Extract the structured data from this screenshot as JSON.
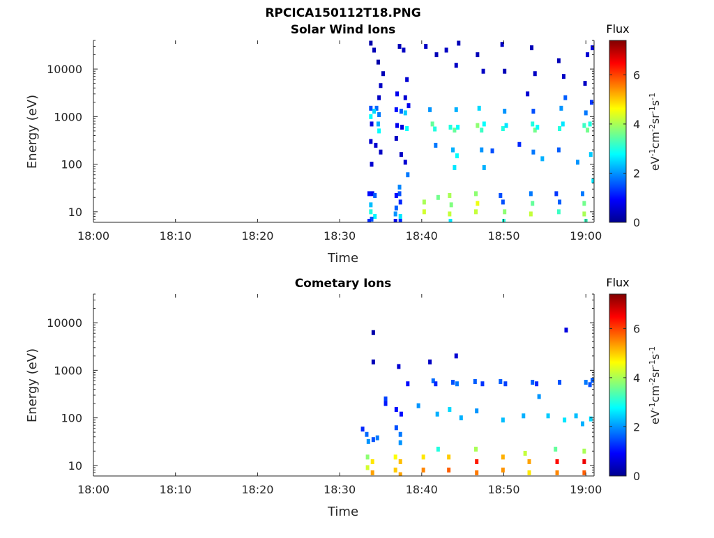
{
  "figure_title": "RPCICA150112T18.PNG",
  "chart_data": [
    {
      "type": "heatmap",
      "title": "Solar Wind Ions",
      "xlabel": "Time",
      "ylabel": "Energy (eV)",
      "x_ticks": [
        "18:00",
        "18:10",
        "18:20",
        "18:30",
        "18:40",
        "18:50",
        "19:00"
      ],
      "y_ticks": [
        "10",
        "100",
        "1000",
        "10000"
      ],
      "y_scale": "log",
      "xlim": [
        "18:00",
        "19:01"
      ],
      "ylim": [
        6,
        40000
      ],
      "colorbar": {
        "title": "Flux",
        "label": "eV-1cm-2sr-1s-1",
        "label_parts": [
          [
            "eV",
            ""
          ],
          [
            "-1",
            "sup"
          ],
          [
            "cm",
            ""
          ],
          [
            "-2",
            "sup"
          ],
          [
            "sr",
            ""
          ],
          [
            "-1",
            "sup"
          ],
          [
            "s",
            ""
          ],
          [
            "-1",
            "sup"
          ]
        ],
        "range": [
          0,
          7.4
        ],
        "ticks": [
          "0",
          "2",
          "4",
          "6"
        ],
        "colormap": "jet"
      },
      "cells": [
        {
          "t": 33.8,
          "e": 35000,
          "v": 0.3
        },
        {
          "t": 34.7,
          "e": 14000,
          "v": 0.3
        },
        {
          "t": 34.2,
          "e": 25000,
          "v": 0.4
        },
        {
          "t": 35.3,
          "e": 8000,
          "v": 0.4
        },
        {
          "t": 35.0,
          "e": 4500,
          "v": 0.5
        },
        {
          "t": 34.8,
          "e": 2500,
          "v": 0.5
        },
        {
          "t": 37.3,
          "e": 30000,
          "v": 0.4
        },
        {
          "t": 37.8,
          "e": 25000,
          "v": 0.5
        },
        {
          "t": 38.2,
          "e": 6000,
          "v": 0.6
        },
        {
          "t": 37.0,
          "e": 3000,
          "v": 0.8
        },
        {
          "t": 38.0,
          "e": 2500,
          "v": 0.6
        },
        {
          "t": 38.4,
          "e": 1700,
          "v": 0.8
        },
        {
          "t": 33.8,
          "e": 1500,
          "v": 1.5
        },
        {
          "t": 34.5,
          "e": 1500,
          "v": 1.7
        },
        {
          "t": 33.8,
          "e": 1000,
          "v": 2.8
        },
        {
          "t": 34.2,
          "e": 1300,
          "v": 2.5
        },
        {
          "t": 34.8,
          "e": 1100,
          "v": 1.8
        },
        {
          "t": 33.9,
          "e": 700,
          "v": 0.7
        },
        {
          "t": 34.7,
          "e": 700,
          "v": 2.2
        },
        {
          "t": 34.8,
          "e": 500,
          "v": 2.8
        },
        {
          "t": 36.9,
          "e": 1400,
          "v": 1.0
        },
        {
          "t": 37.5,
          "e": 1300,
          "v": 1.6
        },
        {
          "t": 38.0,
          "e": 1200,
          "v": 2.4
        },
        {
          "t": 37.0,
          "e": 650,
          "v": 0.8
        },
        {
          "t": 37.6,
          "e": 600,
          "v": 0.7
        },
        {
          "t": 38.2,
          "e": 560,
          "v": 2.8
        },
        {
          "t": 33.8,
          "e": 300,
          "v": 0.6
        },
        {
          "t": 34.4,
          "e": 250,
          "v": 0.6
        },
        {
          "t": 33.9,
          "e": 100,
          "v": 0.6
        },
        {
          "t": 35.0,
          "e": 180,
          "v": 0.5
        },
        {
          "t": 36.9,
          "e": 350,
          "v": 0.5
        },
        {
          "t": 37.5,
          "e": 160,
          "v": 0.5
        },
        {
          "t": 38.3,
          "e": 60,
          "v": 1.8
        },
        {
          "t": 38.0,
          "e": 110,
          "v": 0.6
        },
        {
          "t": 33.6,
          "e": 24,
          "v": 1.0
        },
        {
          "t": 34.0,
          "e": 24,
          "v": 0.8
        },
        {
          "t": 34.3,
          "e": 22,
          "v": 1.6
        },
        {
          "t": 33.8,
          "e": 14,
          "v": 2.3
        },
        {
          "t": 33.8,
          "e": 10,
          "v": 3.0
        },
        {
          "t": 34.3,
          "e": 8,
          "v": 2.7
        },
        {
          "t": 33.9,
          "e": 7,
          "v": 1.5
        },
        {
          "t": 33.6,
          "e": 6.3,
          "v": 1.2
        },
        {
          "t": 37.3,
          "e": 33,
          "v": 1.9
        },
        {
          "t": 37.3,
          "e": 24,
          "v": 1.5
        },
        {
          "t": 36.9,
          "e": 22,
          "v": 1.0
        },
        {
          "t": 37.4,
          "e": 16,
          "v": 1.2
        },
        {
          "t": 36.9,
          "e": 12,
          "v": 1.6
        },
        {
          "t": 36.8,
          "e": 9,
          "v": 2.0
        },
        {
          "t": 37.4,
          "e": 8,
          "v": 2.6
        },
        {
          "t": 36.8,
          "e": 6.3,
          "v": 0.8
        },
        {
          "t": 37.4,
          "e": 6.3,
          "v": 1.2
        },
        {
          "t": 41.0,
          "e": 1400,
          "v": 2.0
        },
        {
          "t": 41.3,
          "e": 700,
          "v": 3.5
        },
        {
          "t": 41.6,
          "e": 550,
          "v": 3.0
        },
        {
          "t": 43.5,
          "e": 600,
          "v": 3.0
        },
        {
          "t": 44.0,
          "e": 520,
          "v": 3.5
        },
        {
          "t": 44.4,
          "e": 600,
          "v": 2.8
        },
        {
          "t": 46.8,
          "e": 650,
          "v": 3.8
        },
        {
          "t": 47.3,
          "e": 520,
          "v": 3.2
        },
        {
          "t": 47.6,
          "e": 700,
          "v": 2.8
        },
        {
          "t": 49.9,
          "e": 560,
          "v": 3.0
        },
        {
          "t": 50.3,
          "e": 650,
          "v": 2.6
        },
        {
          "t": 53.5,
          "e": 700,
          "v": 3.0
        },
        {
          "t": 53.8,
          "e": 520,
          "v": 3.6
        },
        {
          "t": 54.1,
          "e": 600,
          "v": 2.8
        },
        {
          "t": 56.8,
          "e": 560,
          "v": 3.0
        },
        {
          "t": 57.2,
          "e": 700,
          "v": 2.6
        },
        {
          "t": 59.8,
          "e": 650,
          "v": 3.2
        },
        {
          "t": 60.2,
          "e": 520,
          "v": 3.6
        },
        {
          "t": 60.5,
          "e": 700,
          "v": 3.0
        },
        {
          "t": 44.2,
          "e": 1400,
          "v": 2.2
        },
        {
          "t": 47.0,
          "e": 1500,
          "v": 2.5
        },
        {
          "t": 50.1,
          "e": 1300,
          "v": 2.0
        },
        {
          "t": 53.6,
          "e": 1300,
          "v": 1.5
        },
        {
          "t": 57.0,
          "e": 1500,
          "v": 2.0
        },
        {
          "t": 60.0,
          "e": 1200,
          "v": 1.8
        },
        {
          "t": 40.5,
          "e": 30000,
          "v": 0.5
        },
        {
          "t": 41.8,
          "e": 20000,
          "v": 0.4
        },
        {
          "t": 43.0,
          "e": 25000,
          "v": 0.5
        },
        {
          "t": 44.5,
          "e": 35000,
          "v": 0.4
        },
        {
          "t": 44.2,
          "e": 12000,
          "v": 0.5
        },
        {
          "t": 46.8,
          "e": 20000,
          "v": 0.4
        },
        {
          "t": 47.5,
          "e": 9000,
          "v": 0.5
        },
        {
          "t": 49.8,
          "e": 33000,
          "v": 0.5
        },
        {
          "t": 50.1,
          "e": 9000,
          "v": 0.4
        },
        {
          "t": 53.4,
          "e": 28000,
          "v": 0.4
        },
        {
          "t": 53.8,
          "e": 8000,
          "v": 0.5
        },
        {
          "t": 56.7,
          "e": 15000,
          "v": 0.4
        },
        {
          "t": 57.3,
          "e": 7000,
          "v": 0.5
        },
        {
          "t": 60.2,
          "e": 20000,
          "v": 0.6
        },
        {
          "t": 60.8,
          "e": 28000,
          "v": 0.7
        },
        {
          "t": 59.9,
          "e": 5000,
          "v": 0.5
        },
        {
          "t": 60.7,
          "e": 2000,
          "v": 1.3
        },
        {
          "t": 57.5,
          "e": 2500,
          "v": 1.6
        },
        {
          "t": 52.9,
          "e": 3000,
          "v": 0.6
        },
        {
          "t": 41.7,
          "e": 250,
          "v": 1.8
        },
        {
          "t": 43.8,
          "e": 200,
          "v": 2.2
        },
        {
          "t": 44.3,
          "e": 150,
          "v": 2.8
        },
        {
          "t": 47.3,
          "e": 200,
          "v": 2.0
        },
        {
          "t": 48.6,
          "e": 190,
          "v": 1.5
        },
        {
          "t": 51.9,
          "e": 260,
          "v": 1.2
        },
        {
          "t": 53.6,
          "e": 180,
          "v": 1.8
        },
        {
          "t": 54.7,
          "e": 130,
          "v": 2.2
        },
        {
          "t": 56.7,
          "e": 200,
          "v": 1.6
        },
        {
          "t": 59.0,
          "e": 110,
          "v": 2.0
        },
        {
          "t": 60.6,
          "e": 160,
          "v": 2.4
        },
        {
          "t": 60.9,
          "e": 45,
          "v": 2.6
        },
        {
          "t": 44.0,
          "e": 85,
          "v": 2.6
        },
        {
          "t": 47.6,
          "e": 85,
          "v": 2.2
        },
        {
          "t": 40.3,
          "e": 16,
          "v": 4.0
        },
        {
          "t": 40.3,
          "e": 10,
          "v": 4.3
        },
        {
          "t": 42.0,
          "e": 20,
          "v": 3.6
        },
        {
          "t": 43.4,
          "e": 22,
          "v": 4.0
        },
        {
          "t": 43.6,
          "e": 14,
          "v": 3.7
        },
        {
          "t": 43.4,
          "e": 9,
          "v": 4.2
        },
        {
          "t": 43.5,
          "e": 6.3,
          "v": 2.6
        },
        {
          "t": 46.6,
          "e": 24,
          "v": 3.8
        },
        {
          "t": 46.8,
          "e": 15,
          "v": 4.5
        },
        {
          "t": 46.6,
          "e": 10,
          "v": 4.2
        },
        {
          "t": 49.6,
          "e": 22,
          "v": 1.5
        },
        {
          "t": 49.9,
          "e": 16,
          "v": 1.5
        },
        {
          "t": 50.1,
          "e": 10,
          "v": 3.8
        },
        {
          "t": 50.0,
          "e": 6.3,
          "v": 3.0
        },
        {
          "t": 53.3,
          "e": 24,
          "v": 1.8
        },
        {
          "t": 53.5,
          "e": 15,
          "v": 3.5
        },
        {
          "t": 53.3,
          "e": 9,
          "v": 4.2
        },
        {
          "t": 56.4,
          "e": 24,
          "v": 1.3
        },
        {
          "t": 56.8,
          "e": 16,
          "v": 1.6
        },
        {
          "t": 56.7,
          "e": 10,
          "v": 3.2
        },
        {
          "t": 59.6,
          "e": 24,
          "v": 1.8
        },
        {
          "t": 59.8,
          "e": 15,
          "v": 3.6
        },
        {
          "t": 59.8,
          "e": 9,
          "v": 4.0
        },
        {
          "t": 60.0,
          "e": 6.3,
          "v": 3.2
        }
      ]
    },
    {
      "type": "heatmap",
      "title": "Cometary Ions",
      "xlabel": "Time",
      "ylabel": "Energy (eV)",
      "x_ticks": [
        "18:00",
        "18:10",
        "18:20",
        "18:30",
        "18:40",
        "18:50",
        "19:00"
      ],
      "y_ticks": [
        "10",
        "100",
        "1000",
        "10000"
      ],
      "y_scale": "log",
      "xlim": [
        "18:00",
        "19:01"
      ],
      "ylim": [
        6,
        40000
      ],
      "colorbar": {
        "title": "Flux",
        "label": "eV-1cm-2sr-1s-1",
        "label_parts": [
          [
            "eV",
            ""
          ],
          [
            "-1",
            "sup"
          ],
          [
            "cm",
            ""
          ],
          [
            "-2",
            "sup"
          ],
          [
            "sr",
            ""
          ],
          [
            "-1",
            "sup"
          ],
          [
            "s",
            ""
          ],
          [
            "-1",
            "sup"
          ]
        ],
        "range": [
          0,
          7.4
        ],
        "ticks": [
          "0",
          "2",
          "4",
          "6"
        ],
        "colormap": "jet"
      },
      "cells": [
        {
          "t": 34.1,
          "e": 6200,
          "v": 0.3
        },
        {
          "t": 34.1,
          "e": 1500,
          "v": 0.4
        },
        {
          "t": 37.2,
          "e": 1200,
          "v": 0.6
        },
        {
          "t": 41.0,
          "e": 1500,
          "v": 0.5
        },
        {
          "t": 44.2,
          "e": 2000,
          "v": 0.6
        },
        {
          "t": 57.6,
          "e": 7000,
          "v": 0.7
        },
        {
          "t": 38.3,
          "e": 520,
          "v": 1.0
        },
        {
          "t": 41.4,
          "e": 600,
          "v": 1.7
        },
        {
          "t": 41.7,
          "e": 520,
          "v": 1.2
        },
        {
          "t": 43.8,
          "e": 560,
          "v": 1.5
        },
        {
          "t": 44.3,
          "e": 520,
          "v": 1.8
        },
        {
          "t": 46.5,
          "e": 580,
          "v": 1.6
        },
        {
          "t": 47.4,
          "e": 520,
          "v": 1.3
        },
        {
          "t": 49.6,
          "e": 580,
          "v": 1.6
        },
        {
          "t": 50.2,
          "e": 520,
          "v": 1.4
        },
        {
          "t": 53.5,
          "e": 560,
          "v": 1.6
        },
        {
          "t": 54.0,
          "e": 520,
          "v": 1.2
        },
        {
          "t": 56.8,
          "e": 560,
          "v": 1.5
        },
        {
          "t": 60.0,
          "e": 560,
          "v": 1.8
        },
        {
          "t": 60.5,
          "e": 500,
          "v": 1.5
        },
        {
          "t": 60.8,
          "e": 620,
          "v": 1.6
        },
        {
          "t": 35.6,
          "e": 250,
          "v": 1.4
        },
        {
          "t": 35.6,
          "e": 200,
          "v": 1.1
        },
        {
          "t": 36.9,
          "e": 150,
          "v": 1.0
        },
        {
          "t": 37.5,
          "e": 120,
          "v": 1.0
        },
        {
          "t": 39.6,
          "e": 180,
          "v": 2.0
        },
        {
          "t": 41.9,
          "e": 120,
          "v": 2.2
        },
        {
          "t": 43.4,
          "e": 150,
          "v": 2.5
        },
        {
          "t": 44.8,
          "e": 100,
          "v": 2.2
        },
        {
          "t": 46.7,
          "e": 140,
          "v": 2.0
        },
        {
          "t": 49.9,
          "e": 90,
          "v": 2.3
        },
        {
          "t": 52.4,
          "e": 110,
          "v": 2.2
        },
        {
          "t": 54.3,
          "e": 280,
          "v": 2.0
        },
        {
          "t": 55.4,
          "e": 110,
          "v": 2.4
        },
        {
          "t": 57.4,
          "e": 90,
          "v": 2.6
        },
        {
          "t": 58.8,
          "e": 110,
          "v": 2.3
        },
        {
          "t": 59.6,
          "e": 75,
          "v": 2.2
        },
        {
          "t": 60.6,
          "e": 95,
          "v": 2.5
        },
        {
          "t": 32.8,
          "e": 58,
          "v": 1.2
        },
        {
          "t": 33.3,
          "e": 45,
          "v": 1.7
        },
        {
          "t": 33.5,
          "e": 32,
          "v": 2.0
        },
        {
          "t": 34.1,
          "e": 35,
          "v": 1.5
        },
        {
          "t": 34.6,
          "e": 38,
          "v": 1.8
        },
        {
          "t": 36.9,
          "e": 62,
          "v": 1.5
        },
        {
          "t": 37.4,
          "e": 45,
          "v": 1.8
        },
        {
          "t": 37.4,
          "e": 30,
          "v": 2.0
        },
        {
          "t": 33.4,
          "e": 15,
          "v": 3.8
        },
        {
          "t": 33.4,
          "e": 9,
          "v": 4.3
        },
        {
          "t": 34.0,
          "e": 12,
          "v": 4.8
        },
        {
          "t": 34.0,
          "e": 7,
          "v": 5.3
        },
        {
          "t": 36.8,
          "e": 15,
          "v": 4.6
        },
        {
          "t": 36.8,
          "e": 8,
          "v": 5.0
        },
        {
          "t": 37.4,
          "e": 12,
          "v": 5.1
        },
        {
          "t": 37.4,
          "e": 6.4,
          "v": 5.3
        },
        {
          "t": 40.2,
          "e": 15,
          "v": 4.8
        },
        {
          "t": 40.2,
          "e": 8,
          "v": 5.5
        },
        {
          "t": 42.0,
          "e": 22,
          "v": 3.0
        },
        {
          "t": 43.3,
          "e": 15,
          "v": 5.0
        },
        {
          "t": 43.3,
          "e": 8,
          "v": 5.8
        },
        {
          "t": 46.6,
          "e": 22,
          "v": 4.0
        },
        {
          "t": 46.7,
          "e": 12,
          "v": 6.3
        },
        {
          "t": 46.7,
          "e": 7,
          "v": 5.6
        },
        {
          "t": 49.9,
          "e": 15,
          "v": 5.2
        },
        {
          "t": 49.9,
          "e": 8,
          "v": 5.4
        },
        {
          "t": 52.6,
          "e": 18,
          "v": 4.2
        },
        {
          "t": 53.1,
          "e": 12,
          "v": 5.3
        },
        {
          "t": 53.1,
          "e": 7,
          "v": 4.8
        },
        {
          "t": 56.3,
          "e": 22,
          "v": 3.5
        },
        {
          "t": 56.5,
          "e": 12,
          "v": 6.4
        },
        {
          "t": 56.5,
          "e": 7,
          "v": 5.5
        },
        {
          "t": 59.8,
          "e": 20,
          "v": 4.0
        },
        {
          "t": 59.8,
          "e": 12,
          "v": 6.6
        },
        {
          "t": 59.8,
          "e": 7,
          "v": 5.8
        }
      ]
    }
  ]
}
